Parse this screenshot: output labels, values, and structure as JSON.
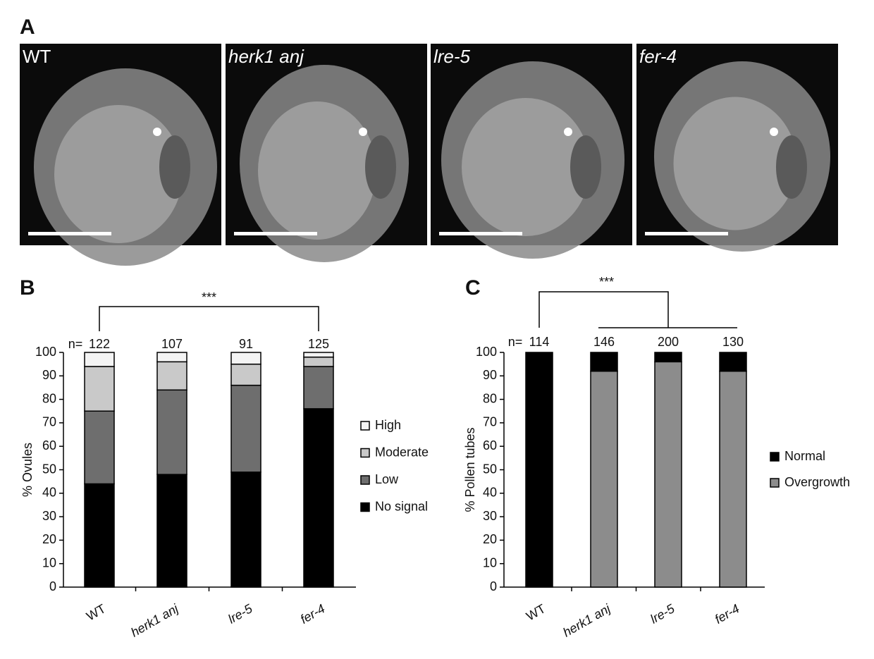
{
  "panel_a": {
    "label": "A",
    "images": [
      "WT",
      "herk1 anj",
      "lre-5",
      "fer-4"
    ]
  },
  "chart_data": [
    {
      "type": "stacked-bar",
      "title": "B",
      "y_label": "% Ovules",
      "categories": [
        "WT",
        "herk1 anj",
        "lre-5",
        "fer-4"
      ],
      "series": [
        {
          "name": "No signal",
          "color": "#000000",
          "values": [
            44,
            48,
            49,
            76
          ]
        },
        {
          "name": "Low",
          "color": "#6e6e6e",
          "values": [
            31,
            36,
            37,
            18
          ]
        },
        {
          "name": "Moderate",
          "color": "#c9c9c9",
          "values": [
            19,
            12,
            9,
            4
          ]
        },
        {
          "name": "High",
          "color": "#f4f4f4",
          "values": [
            6,
            4,
            5,
            2
          ]
        }
      ],
      "ylim": [
        0,
        100
      ],
      "yticks": [
        0,
        10,
        20,
        30,
        40,
        50,
        60,
        70,
        80,
        90,
        100
      ],
      "sample_size_prefix": "n=",
      "sample_sizes": [
        122,
        107,
        91,
        125
      ],
      "significance": "***",
      "grid": false
    },
    {
      "type": "stacked-bar",
      "title": "C",
      "y_label": "% Pollen tubes",
      "categories": [
        "WT",
        "herk1 anj",
        "lre-5",
        "fer-4"
      ],
      "series": [
        {
          "name": "Overgrowth",
          "color": "#8c8c8c",
          "values": [
            0,
            92,
            96,
            92
          ]
        },
        {
          "name": "Normal",
          "color": "#000000",
          "values": [
            100,
            8,
            4,
            8
          ]
        }
      ],
      "ylim": [
        0,
        100
      ],
      "yticks": [
        0,
        10,
        20,
        30,
        40,
        50,
        60,
        70,
        80,
        90,
        100
      ],
      "sample_size_prefix": "n=",
      "sample_sizes": [
        114,
        146,
        200,
        130
      ],
      "significance": "***",
      "grid": false
    }
  ]
}
